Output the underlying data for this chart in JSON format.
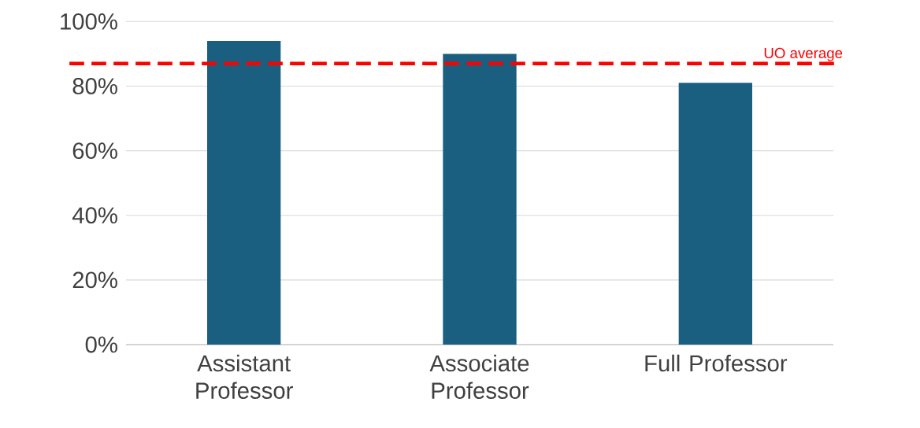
{
  "chart_data": {
    "type": "bar",
    "categories": [
      "Assistant Professor",
      "Associate Professor",
      "Full Professor"
    ],
    "values": [
      94,
      90,
      81
    ],
    "color": "#1a5f80",
    "ylim": [
      0,
      100
    ],
    "yticks": [
      {
        "value": 0,
        "label": "0%"
      },
      {
        "value": 20,
        "label": "20%"
      },
      {
        "value": 40,
        "label": "40%"
      },
      {
        "value": 60,
        "label": "60%"
      },
      {
        "value": 80,
        "label": "80%"
      },
      {
        "value": 100,
        "label": "100%"
      }
    ],
    "grid": "y",
    "ref_lines": [
      {
        "axis": "y",
        "value": 87,
        "label": "UO average",
        "color": "#ff0000",
        "line_style": "dashed"
      }
    ]
  }
}
